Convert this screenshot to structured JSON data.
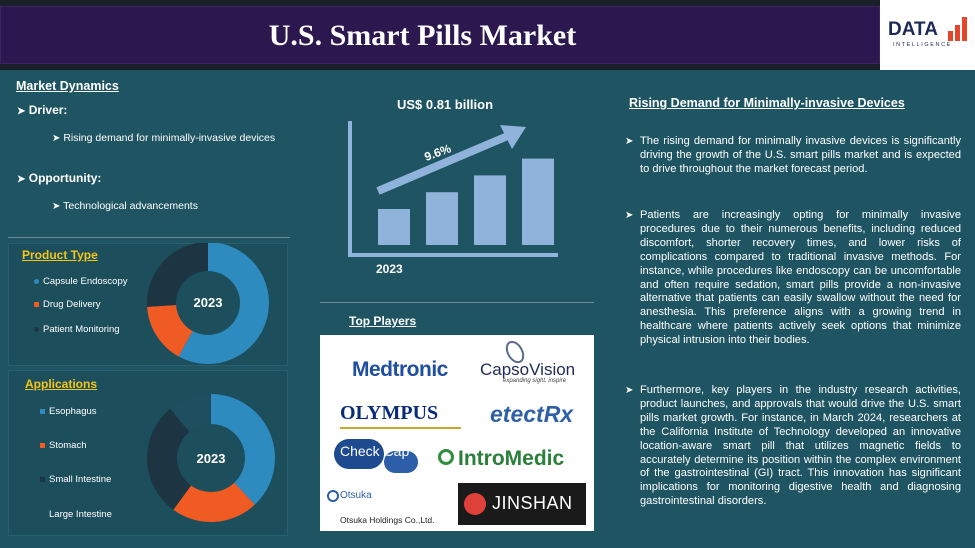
{
  "header": {
    "title": "U.S. Smart Pills Market",
    "logo_main": "DATA",
    "logo_sub": "INTELLIGENCE"
  },
  "market_dynamics": {
    "title": "Market Dynamics",
    "driver_label": "Driver:",
    "driver_item": "Rising demand for minimally-invasive devices",
    "opportunity_label": "Opportunity:",
    "opportunity_item": "Technological advancements"
  },
  "product_type": {
    "title": "Product Type",
    "year": "2023",
    "legend": [
      "Capsule Endoscopy",
      "Drug Delivery",
      "Patient Monitoring"
    ],
    "colors": [
      "#2d8bbf",
      "#f05a23",
      "#1d3542"
    ],
    "shares": [
      0.58,
      0.16,
      0.26
    ]
  },
  "applications": {
    "title": "Applications",
    "year": "2023",
    "legend": [
      "Esophagus",
      "Stomach",
      "Small Intestine",
      "Large Intestine"
    ],
    "colors": [
      "#2d8bbf",
      "#f05a23",
      "#1d3542",
      "#1f4f5e"
    ],
    "shares": [
      0.38,
      0.22,
      0.29,
      0.11
    ]
  },
  "market_size": {
    "value": "US$ 0.81 billion",
    "cagr": "9.6%",
    "year": "2023",
    "bars": [
      0.3,
      0.44,
      0.58,
      0.72
    ]
  },
  "top_players": {
    "title": "Top Players",
    "players": [
      "Medtronic",
      "CapsoVision",
      "OLYMPUS",
      "etectRx",
      "Check Cap",
      "IntroMedic",
      "Otsuka",
      "Otsuka Holdings Co.,Ltd.",
      "JINSHAN"
    ],
    "capso_tagline": "expanding sight. inspire"
  },
  "right": {
    "title": "Rising Demand for Minimally-invasive Devices",
    "paragraphs": [
      "The rising demand for minimally invasive devices is significantly driving the growth of the U.S. smart pills market and is expected to drive throughout the market forecast period.",
      "Patients are increasingly opting for minimally invasive procedures due to their numerous benefits, including reduced discomfort, shorter recovery times, and lower risks of complications compared to traditional invasive methods. For instance, while procedures like endoscopy can be uncomfortable and often require sedation, smart pills provide a non-invasive alternative that patients can easily swallow without the need for anesthesia. This preference aligns with a growing trend in healthcare where patients actively seek options that minimize physical intrusion into their bodies.",
      "Furthermore, key players in the industry research activities, product launches, and approvals that would drive the U.S. smart pills market growth. For instance, in March 2024, researchers at the California Institute of Technology developed an innovative location-aware smart pill that utilizes magnetic fields to accurately determine its position within the complex environment of the gastrointestinal (GI) tract. This innovation has significant implications for monitoring digestive health and diagnosing gastrointestinal disorders."
    ]
  }
}
